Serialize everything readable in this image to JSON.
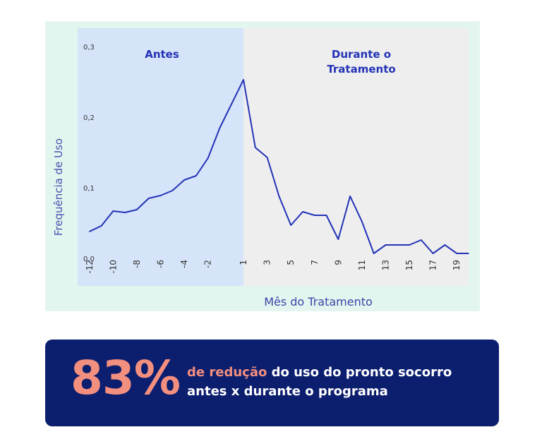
{
  "colors": {
    "panel_bg": "#e3f5ef",
    "before_region": "#d6e4fa",
    "during_region": "#eeeeef",
    "line": "#2332b5",
    "axis_text": "#333333",
    "card_bg": "#0c1e6e",
    "accent": "#f38f7e"
  },
  "chart_data": {
    "type": "line",
    "title": "",
    "xlabel": "Mês do Tratamento",
    "ylabel": "Frequência de Uso",
    "ylim": [
      0,
      0.3
    ],
    "xlim": [
      -13,
      20
    ],
    "grid": false,
    "legend": "none",
    "y_ticks": [
      "0,0",
      "0,1",
      "0,2",
      "0,3"
    ],
    "x_ticks": [
      "-12",
      "-10",
      "-8",
      "-6",
      "-4",
      "-2",
      "1",
      "3",
      "5",
      "7",
      "9",
      "11",
      "13",
      "15",
      "17",
      "19"
    ],
    "regions": [
      {
        "label": "Antes",
        "from": -13,
        "to": 1
      },
      {
        "label_lines": [
          "Durante o",
          "Tratamento"
        ],
        "from": 1,
        "to": 20
      }
    ],
    "series": [
      {
        "x": [
          -12,
          -11,
          -10,
          -9,
          -8,
          -7,
          -6,
          -5,
          -4,
          -3,
          -2,
          -1,
          1,
          2,
          3,
          4,
          5,
          6,
          7,
          8,
          9,
          10,
          11,
          12,
          13,
          14,
          15,
          16,
          17,
          18,
          19,
          20
        ],
        "values": [
          0.038,
          0.046,
          0.067,
          0.065,
          0.069,
          0.085,
          0.089,
          0.096,
          0.111,
          0.117,
          0.142,
          0.185,
          0.253,
          0.157,
          0.143,
          0.088,
          0.047,
          0.066,
          0.061,
          0.061,
          0.027,
          0.088,
          0.052,
          0.007,
          0.019,
          0.019,
          0.019,
          0.026,
          0.007,
          0.019,
          0.007,
          0.007
        ]
      }
    ]
  },
  "card": {
    "big_number": "83%",
    "highlight": "de redução",
    "rest_line1": " do uso do pronto socorro",
    "line2": "antes x durante o programa"
  }
}
